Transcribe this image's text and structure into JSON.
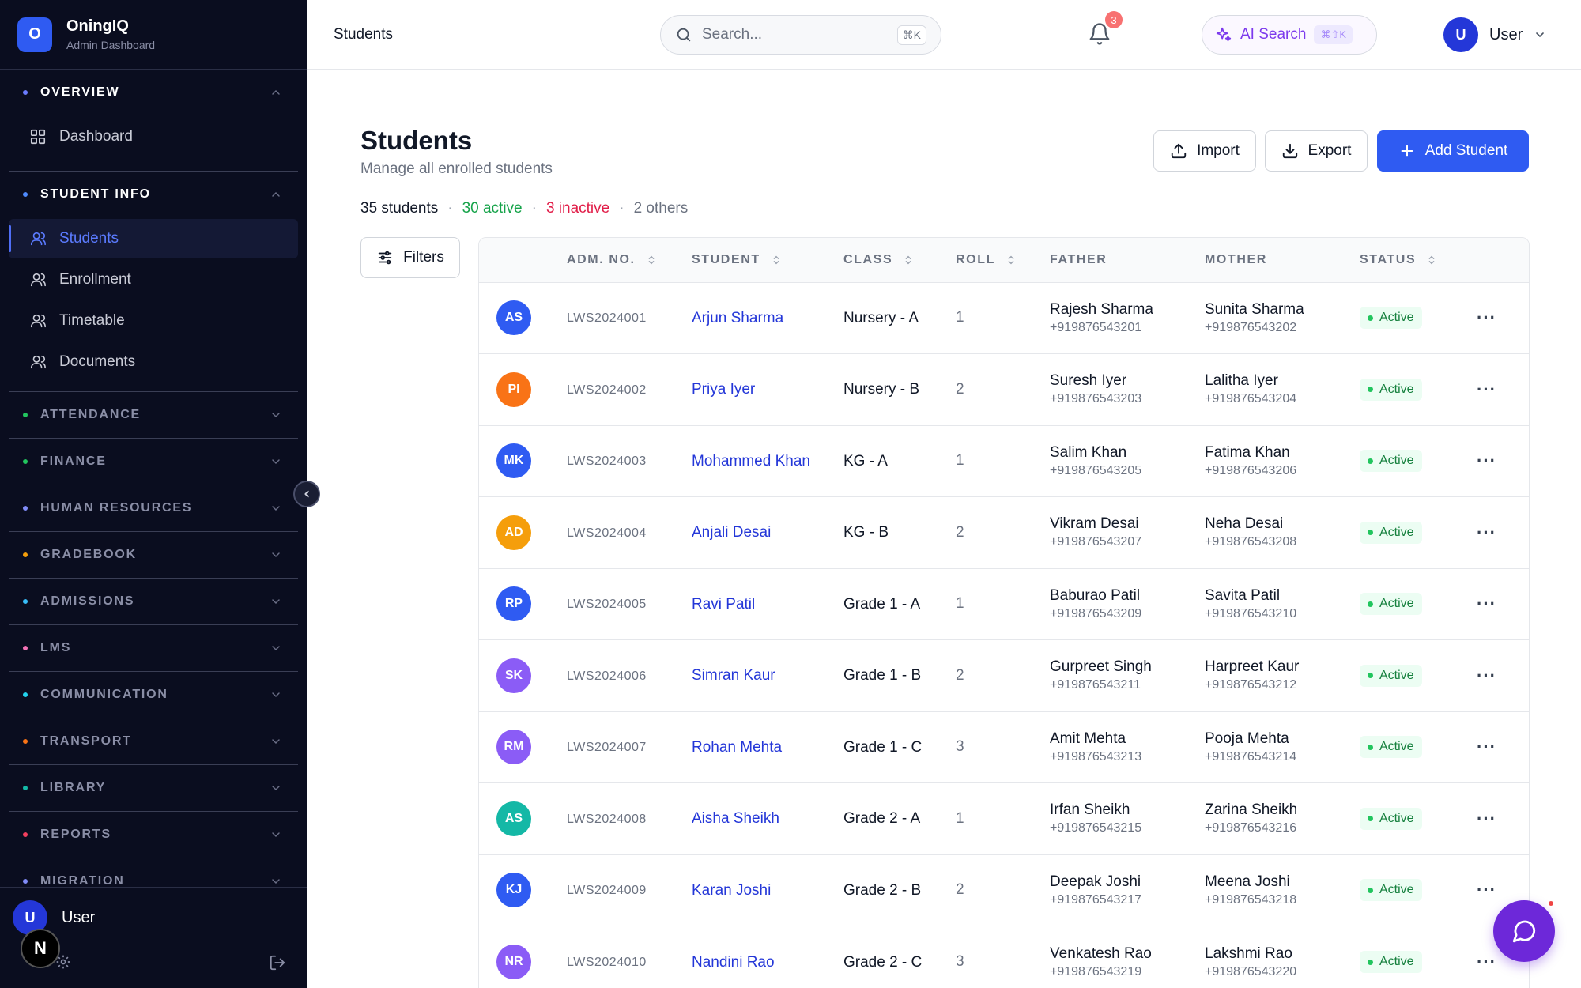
{
  "brand": {
    "logo_letter": "O",
    "name": "OningIQ",
    "subtitle": "Admin Dashboard"
  },
  "sidebar": {
    "sections": [
      {
        "title": "OVERVIEW",
        "dot": "#6b7cff",
        "open": true,
        "items": [
          {
            "label": "Dashboard",
            "icon": "grid-icon"
          }
        ]
      },
      {
        "title": "STUDENT INFO",
        "dot": "#4f8bff",
        "open": true,
        "items": [
          {
            "label": "Students",
            "icon": "user-icon",
            "active": true
          },
          {
            "label": "Enrollment",
            "icon": "user-icon"
          },
          {
            "label": "Timetable",
            "icon": "user-icon"
          },
          {
            "label": "Documents",
            "icon": "user-icon"
          }
        ]
      },
      {
        "title": "ATTENDANCE",
        "dot": "#22c55e"
      },
      {
        "title": "FINANCE",
        "dot": "#22c55e"
      },
      {
        "title": "HUMAN RESOURCES",
        "dot": "#818cf8"
      },
      {
        "title": "GRADEBOOK",
        "dot": "#f59e0b"
      },
      {
        "title": "ADMISSIONS",
        "dot": "#38bdf8"
      },
      {
        "title": "LMS",
        "dot": "#f472b6"
      },
      {
        "title": "COMMUNICATION",
        "dot": "#22d3ee"
      },
      {
        "title": "TRANSPORT",
        "dot": "#f97316"
      },
      {
        "title": "LIBRARY",
        "dot": "#14b8a6"
      },
      {
        "title": "REPORTS",
        "dot": "#f43f5e"
      },
      {
        "title": "MIGRATION",
        "dot": "#818cf8"
      }
    ],
    "footer": {
      "avatar": "U",
      "user_name": "User",
      "badge": "N"
    }
  },
  "topbar": {
    "title": "Students",
    "search_placeholder": "Search...",
    "search_kbd": "⌘K",
    "ai_search_label": "AI Search",
    "ai_search_kbd": "⌘⇧K",
    "notification_count": "3",
    "avatar": "U",
    "user_name": "User"
  },
  "page": {
    "title": "Students",
    "subtitle": "Manage all enrolled students",
    "summary": {
      "total": "35 students",
      "active": "30 active",
      "inactive": "3 inactive",
      "others": "2 others",
      "separator": "·"
    },
    "buttons": {
      "import": "Import",
      "export": "Export",
      "add": "Add Student",
      "filters": "Filters"
    }
  },
  "table": {
    "columns": [
      "ADM. NO.",
      "STUDENT",
      "CLASS",
      "ROLL",
      "FATHER",
      "MOTHER",
      "STATUS"
    ],
    "rows": [
      {
        "initials": "AS",
        "color": "#2f5bf2",
        "adm": "LWS2024001",
        "student": "Arjun Sharma",
        "class": "Nursery - A",
        "roll": "1",
        "father": "Rajesh Sharma",
        "father_phone": "+919876543201",
        "mother": "Sunita Sharma",
        "mother_phone": "+919876543202",
        "status": "Active"
      },
      {
        "initials": "PI",
        "color": "#f97316",
        "adm": "LWS2024002",
        "student": "Priya Iyer",
        "class": "Nursery - B",
        "roll": "2",
        "father": "Suresh Iyer",
        "father_phone": "+919876543203",
        "mother": "Lalitha Iyer",
        "mother_phone": "+919876543204",
        "status": "Active"
      },
      {
        "initials": "MK",
        "color": "#2f5bf2",
        "adm": "LWS2024003",
        "student": "Mohammed Khan",
        "class": "KG - A",
        "roll": "1",
        "father": "Salim Khan",
        "father_phone": "+919876543205",
        "mother": "Fatima Khan",
        "mother_phone": "+919876543206",
        "status": "Active"
      },
      {
        "initials": "AD",
        "color": "#f59e0b",
        "adm": "LWS2024004",
        "student": "Anjali Desai",
        "class": "KG - B",
        "roll": "2",
        "father": "Vikram Desai",
        "father_phone": "+919876543207",
        "mother": "Neha Desai",
        "mother_phone": "+919876543208",
        "status": "Active"
      },
      {
        "initials": "RP",
        "color": "#2f5bf2",
        "adm": "LWS2024005",
        "student": "Ravi Patil",
        "class": "Grade 1 - A",
        "roll": "1",
        "father": "Baburao Patil",
        "father_phone": "+919876543209",
        "mother": "Savita Patil",
        "mother_phone": "+919876543210",
        "status": "Active"
      },
      {
        "initials": "SK",
        "color": "#8b5cf6",
        "adm": "LWS2024006",
        "student": "Simran Kaur",
        "class": "Grade 1 - B",
        "roll": "2",
        "father": "Gurpreet Singh",
        "father_phone": "+919876543211",
        "mother": "Harpreet Kaur",
        "mother_phone": "+919876543212",
        "status": "Active"
      },
      {
        "initials": "RM",
        "color": "#8b5cf6",
        "adm": "LWS2024007",
        "student": "Rohan Mehta",
        "class": "Grade 1 - C",
        "roll": "3",
        "father": "Amit Mehta",
        "father_phone": "+919876543213",
        "mother": "Pooja Mehta",
        "mother_phone": "+919876543214",
        "status": "Active"
      },
      {
        "initials": "AS",
        "color": "#14b8a6",
        "adm": "LWS2024008",
        "student": "Aisha Sheikh",
        "class": "Grade 2 - A",
        "roll": "1",
        "father": "Irfan Sheikh",
        "father_phone": "+919876543215",
        "mother": "Zarina Sheikh",
        "mother_phone": "+919876543216",
        "status": "Active"
      },
      {
        "initials": "KJ",
        "color": "#2f5bf2",
        "adm": "LWS2024009",
        "student": "Karan Joshi",
        "class": "Grade 2 - B",
        "roll": "2",
        "father": "Deepak Joshi",
        "father_phone": "+919876543217",
        "mother": "Meena Joshi",
        "mother_phone": "+919876543218",
        "status": "Active"
      },
      {
        "initials": "NR",
        "color": "#8b5cf6",
        "adm": "LWS2024010",
        "student": "Nandini Rao",
        "class": "Grade 2 - C",
        "roll": "3",
        "father": "Venkatesh Rao",
        "father_phone": "+919876543219",
        "mother": "Lakshmi Rao",
        "mother_phone": "+919876543220",
        "status": "Active"
      }
    ],
    "row_action": "···"
  },
  "colors": {
    "brand": "#2f5bf2",
    "sidebar_bg": "#0a0d1f",
    "active_status": "#15803d",
    "inactive": "#e11d48",
    "chat_fab": "#6d28d9"
  }
}
